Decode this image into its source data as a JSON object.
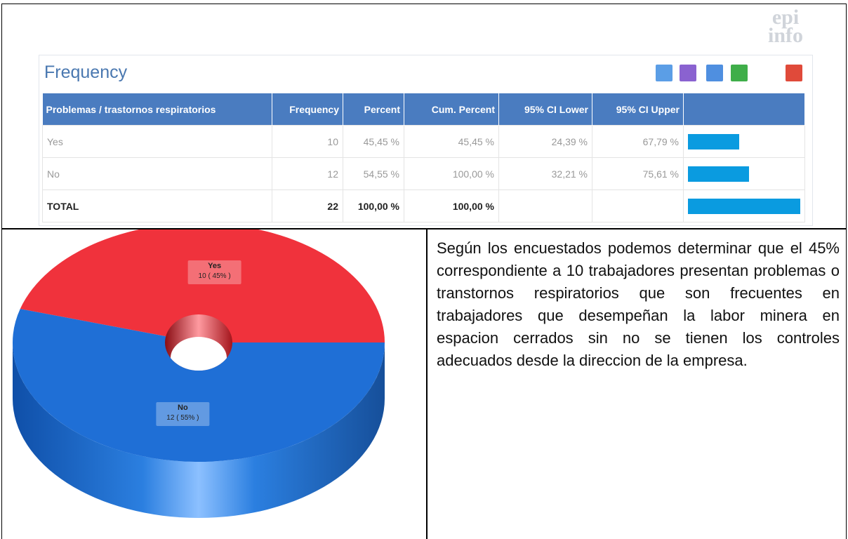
{
  "logo": [
    "epi",
    "info"
  ],
  "panel": {
    "title": "Frequency",
    "table": {
      "header": [
        "Problemas / trastornos respiratorios",
        "Frequency",
        "Percent",
        "Cum. Percent",
        "95% CI Lower",
        "95% CI Upper"
      ],
      "rows": [
        [
          "Yes",
          "10",
          "45,45 %",
          "45,45 %",
          "24,39 %",
          "67,79 %"
        ],
        [
          "No",
          "12",
          "54,55 %",
          "100,00 %",
          "32,21 %",
          "75,61 %"
        ],
        [
          "TOTAL",
          "22",
          "100,00 %",
          "100,00 %"
        ]
      ],
      "bar_percent": [
        45.45,
        54.55,
        100
      ]
    }
  },
  "chart_data": {
    "type": "pie",
    "categories": [
      "Yes",
      "No"
    ],
    "values": [
      10,
      12
    ],
    "value_labels": [
      "10 ( 45% )",
      "12 ( 55% )"
    ],
    "colors": [
      "#f0323c",
      "#1f6fd6"
    ]
  },
  "paragraph": "Según los encuestados podemos determinar que el 45% correspondiente a 10 trabajadores presentan problemas o transtornos respiratorios que son frecuentes en trabajadores que desempeñan la labor minera en espacion cerrados sin no se tienen los controles adecuados desde la direccion de la empresa."
}
